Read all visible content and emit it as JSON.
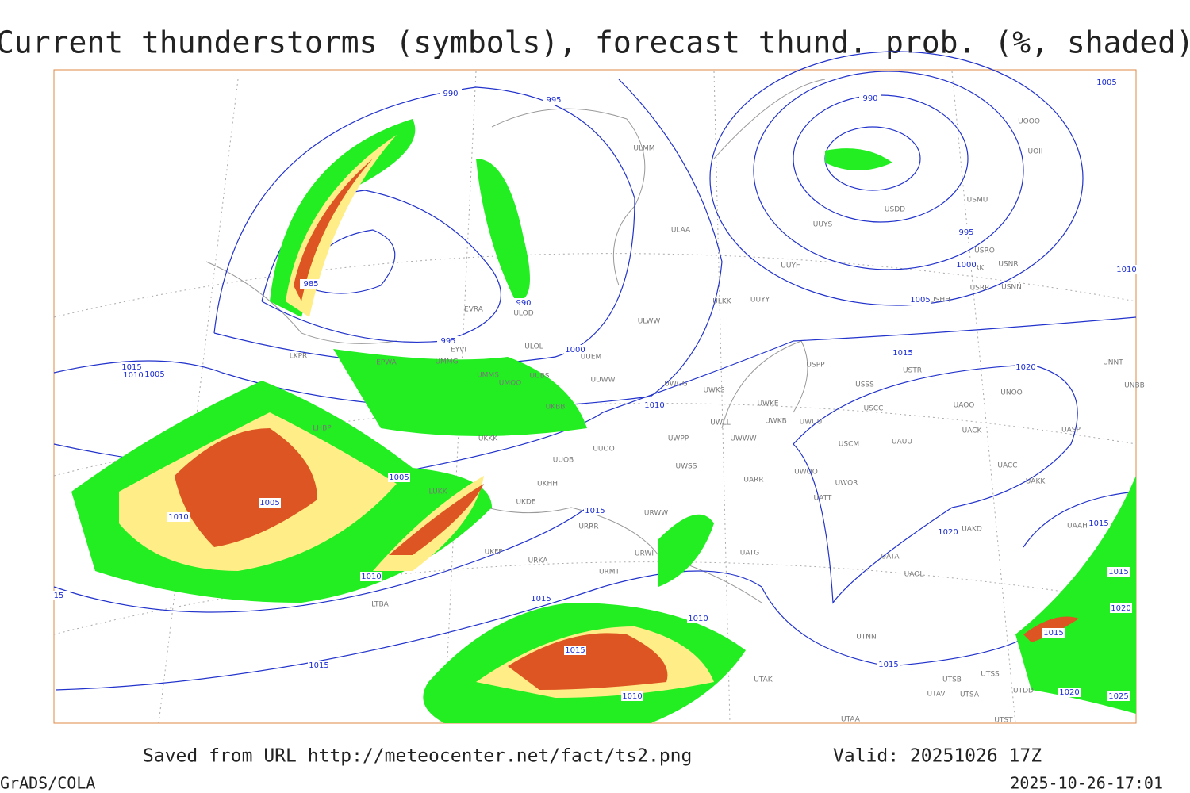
{
  "title": "Current thunderstorms (symbols), forecast thund. prob. (%, shaded)",
  "footer": {
    "source": "Saved from URL http://meteocenter.net/fact/ts2.png",
    "valid": "Valid: 20251026 17Z",
    "software": "GrADS/COLA",
    "timestamp": "2025-10-26-17:01"
  },
  "isobar_labels": [
    990,
    995,
    985,
    990,
    995,
    1000,
    1015,
    1010,
    1005,
    1010,
    1005,
    1005,
    1010,
    1015,
    1010,
    15,
    1015,
    1015,
    1010,
    1010,
    1015,
    990,
    995,
    1000,
    1005,
    1010,
    1005,
    1015,
    1020,
    1020,
    1015,
    1015,
    1015,
    1020,
    1015,
    1020,
    1025
  ],
  "stations": [
    "ULMM",
    "ULAA",
    "UUYH",
    "UUYY",
    "ULKK",
    "ULWW",
    "UUYS",
    "USDD",
    "USMU",
    "UOII",
    "UOOO",
    "USRO",
    "USRK",
    "USNR",
    "USRR",
    "USNN",
    "USHH",
    "EVRA",
    "ULOL",
    "ULOD",
    "EYVI",
    "EPWA",
    "UMMG",
    "UUEM",
    "UMMS",
    "UMOO",
    "UUBS",
    "UUWW",
    "UWGG",
    "UWKS",
    "UKBB",
    "USPP",
    "USSS",
    "USTR",
    "UNOO",
    "UNNT",
    "UNBB",
    "UWKE",
    "UWKB",
    "UWUU",
    "USCC",
    "UAOO",
    "UACK",
    "UASP",
    "UWLL",
    "UWWW",
    "UWPP",
    "UKKK",
    "UUOO",
    "UUOB",
    "USCM",
    "UAUU",
    "UWSS",
    "UAKK",
    "UACC",
    "UKHH",
    "UARR",
    "UWOO",
    "UWOR",
    "LUKK",
    "UKDE",
    "UATT",
    "URWW",
    "URRR",
    "UAKD",
    "UAAH",
    "UKFF",
    "URKA",
    "URWI",
    "UATG",
    "UATA",
    "UAOL",
    "URMT",
    "UTNN",
    "UTSB",
    "UTSS",
    "UTAV",
    "UTSA",
    "UTAA",
    "UTST",
    "UTDD",
    "UTAK",
    "LTBA",
    "LKPR",
    "LHBP"
  ]
}
